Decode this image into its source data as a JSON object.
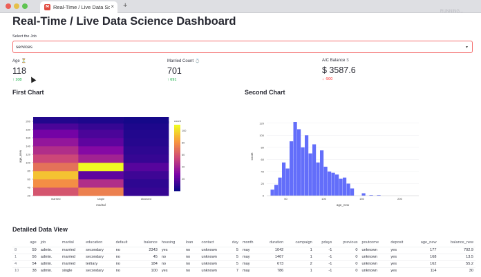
{
  "browser": {
    "tab_title": "Real-Time / Live Data Sci",
    "favicon_text": "M",
    "new_tab_symbol": "+",
    "close_symbol": "×",
    "icon_colors": {
      "close": "#ec5f57",
      "minimize": "#e5c04a",
      "maximize": "#5fc452",
      "favicon": "#e04a3f"
    }
  },
  "topright_text": "RUNNING...",
  "page_title": "Real-Time / Live Data Science Dashboard",
  "selector": {
    "label": "Select the Job",
    "value": "services",
    "caret_icon": "chevron-down-icon"
  },
  "metrics": [
    {
      "label": "Age",
      "label_icon": "⏳",
      "value": "118",
      "delta": "↑ 108",
      "direction": "up"
    },
    {
      "label": "Married Count",
      "label_icon": "💍",
      "value": "701",
      "delta": "↑ 691",
      "direction": "up"
    },
    {
      "label": "A/C Balance",
      "label_icon": "$",
      "value": "$ 3587.6",
      "delta": "↓ -500",
      "direction": "down"
    }
  ],
  "colors": {
    "accent_border": "#f46b6b",
    "delta_up": "#09ab3b",
    "delta_down": "#ff2b2b",
    "histogram_bar": "#636efa"
  },
  "first_chart": {
    "heading": "First Chart",
    "chart_data": {
      "type": "heatmap",
      "x_categories": [
        "married",
        "single",
        "divorced"
      ],
      "xlabel": "marital",
      "ylabel": "age_new",
      "y_ticks": [
        20,
        40,
        60,
        80,
        100,
        120,
        140,
        160,
        180,
        200
      ],
      "ylim": [
        20,
        210
      ],
      "colorbar_title": "count",
      "colorbar_ticks": [
        20,
        40,
        60,
        80,
        100
      ],
      "zlim": [
        0,
        110
      ],
      "colorscale": "plasma",
      "y_bins": [
        30,
        50,
        70,
        90,
        110,
        130,
        150,
        170,
        190,
        205
      ],
      "z": [
        [
          60,
          75,
          10
        ],
        [
          80,
          45,
          8
        ],
        [
          95,
          20,
          12
        ],
        [
          70,
          110,
          18
        ],
        [
          55,
          40,
          10
        ],
        [
          45,
          30,
          8
        ],
        [
          35,
          20,
          6
        ],
        [
          25,
          15,
          5
        ],
        [
          15,
          10,
          4
        ],
        [
          5,
          4,
          2
        ]
      ]
    }
  },
  "second_chart": {
    "heading": "Second Chart",
    "chart_data": {
      "type": "bar",
      "subtype": "histogram",
      "xlabel": "age_new",
      "ylabel": "count",
      "x_ticks": [
        50,
        100,
        150,
        200
      ],
      "xlim": [
        25,
        225
      ],
      "y_ticks": [
        0,
        20,
        40,
        60,
        80,
        100,
        120
      ],
      "ylim": [
        0,
        130
      ],
      "bin_width": 5,
      "bin_starts": [
        30,
        35,
        40,
        45,
        50,
        55,
        60,
        65,
        70,
        75,
        80,
        85,
        90,
        95,
        100,
        105,
        110,
        115,
        120,
        125,
        130,
        135,
        140,
        145,
        150,
        155,
        160,
        165,
        170,
        175,
        180,
        185,
        190,
        195,
        200
      ],
      "values": [
        10,
        18,
        30,
        55,
        45,
        90,
        122,
        110,
        80,
        100,
        70,
        85,
        55,
        75,
        48,
        40,
        38,
        35,
        28,
        30,
        20,
        12,
        0,
        0,
        4,
        0,
        1,
        0,
        1,
        0,
        0,
        0,
        0,
        0,
        0
      ]
    }
  },
  "detail": {
    "heading": "Detailed Data View",
    "columns": [
      "",
      "age",
      "job",
      "marital",
      "education",
      "default",
      "balance",
      "housing",
      "loan",
      "contact",
      "day",
      "month",
      "duration",
      "campaign",
      "pdays",
      "previous",
      "poutcome",
      "deposit",
      "age_new",
      "balance_new"
    ],
    "rows": [
      [
        "8",
        "59",
        "admin.",
        "married",
        "secondary",
        "no",
        "2343",
        "yes",
        "no",
        "unknown",
        "5",
        "may",
        "1042",
        "1",
        "-1",
        "0",
        "unknown",
        "yes",
        "177",
        "702.9"
      ],
      [
        "1",
        "56",
        "admin.",
        "married",
        "secondary",
        "no",
        "45",
        "no",
        "no",
        "unknown",
        "5",
        "may",
        "1467",
        "1",
        "-1",
        "0",
        "unknown",
        "yes",
        "168",
        "13.5"
      ],
      [
        "4",
        "54",
        "admin.",
        "married",
        "tertiary",
        "no",
        "184",
        "no",
        "no",
        "unknown",
        "5",
        "may",
        "673",
        "2",
        "-1",
        "0",
        "unknown",
        "yes",
        "162",
        "55.2"
      ],
      [
        "10",
        "38",
        "admin.",
        "single",
        "secondary",
        "no",
        "100",
        "yes",
        "no",
        "unknown",
        "7",
        "may",
        "786",
        "1",
        "-1",
        "0",
        "unknown",
        "yes",
        "114",
        "30"
      ]
    ]
  }
}
